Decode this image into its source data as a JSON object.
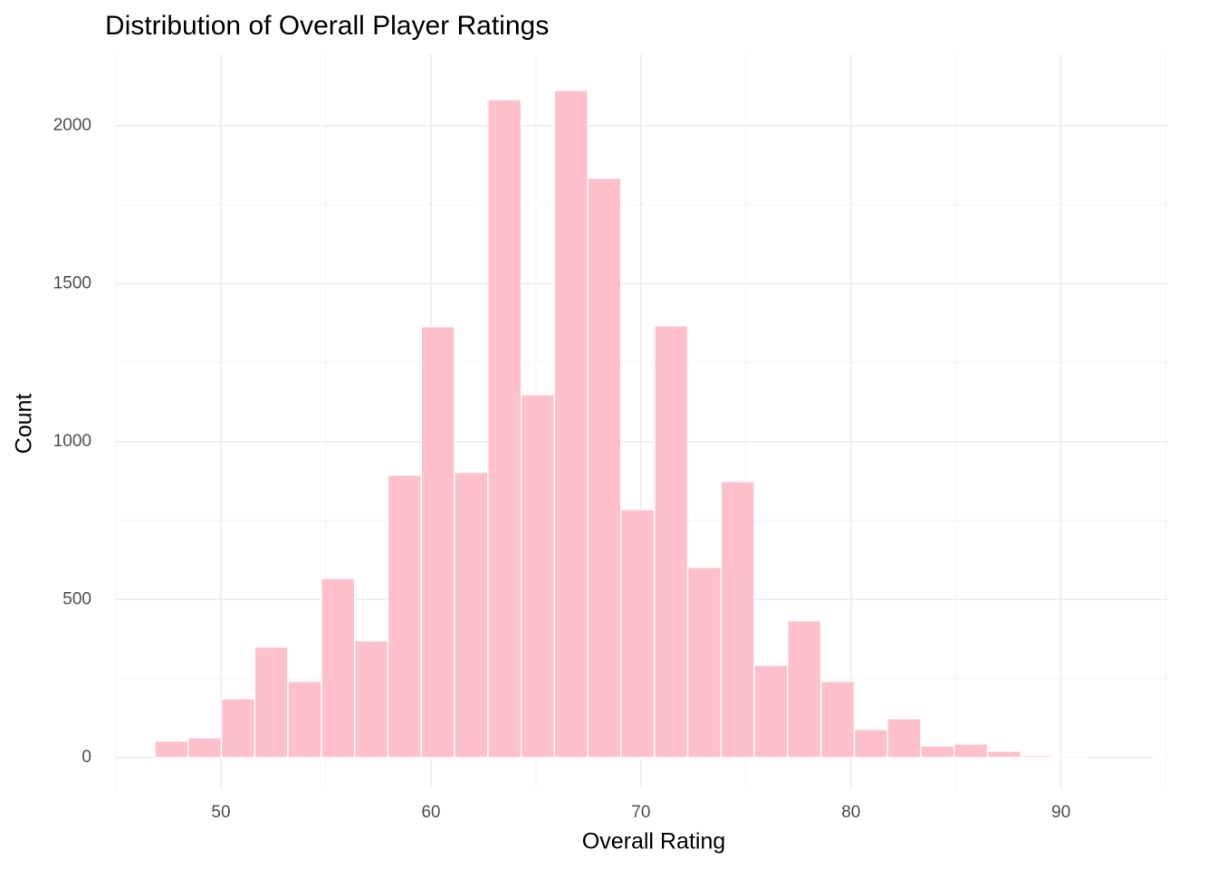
{
  "chart_data": {
    "type": "histogram",
    "title": "Distribution of Overall Player Ratings",
    "x_label": "Overall Rating",
    "y_label": "Count",
    "bins": [
      46.85,
      48.44,
      50.02,
      51.61,
      53.19,
      54.78,
      56.37,
      57.95,
      59.54,
      61.12,
      62.71,
      64.3,
      65.88,
      67.47,
      69.05,
      70.64,
      72.23,
      73.81,
      75.4,
      76.98,
      78.57,
      80.16,
      81.74,
      83.33,
      84.91,
      86.5,
      88.09,
      89.67,
      91.26,
      92.84,
      94.43,
      96.02
    ],
    "values": [
      52,
      63,
      186,
      350,
      241,
      567,
      370,
      894,
      1364,
      903,
      2083,
      1149,
      2112,
      1834,
      785,
      1367,
      602,
      874,
      292,
      433,
      241,
      89,
      123,
      37,
      43,
      20,
      6,
      5,
      0,
      0,
      1
    ],
    "color": "#ffc0cb",
    "xlim": [
      45,
      95.1
    ],
    "ylim": [
      -95,
      2226
    ],
    "xticks": [
      50,
      60,
      70,
      80,
      90
    ],
    "yticks": [
      0,
      500,
      1000,
      1500,
      2000
    ],
    "x_minor_grid": [
      45,
      55,
      65,
      75,
      85,
      95
    ],
    "y_minor_grid": [
      250,
      750,
      1250,
      1750
    ],
    "grid": true
  }
}
